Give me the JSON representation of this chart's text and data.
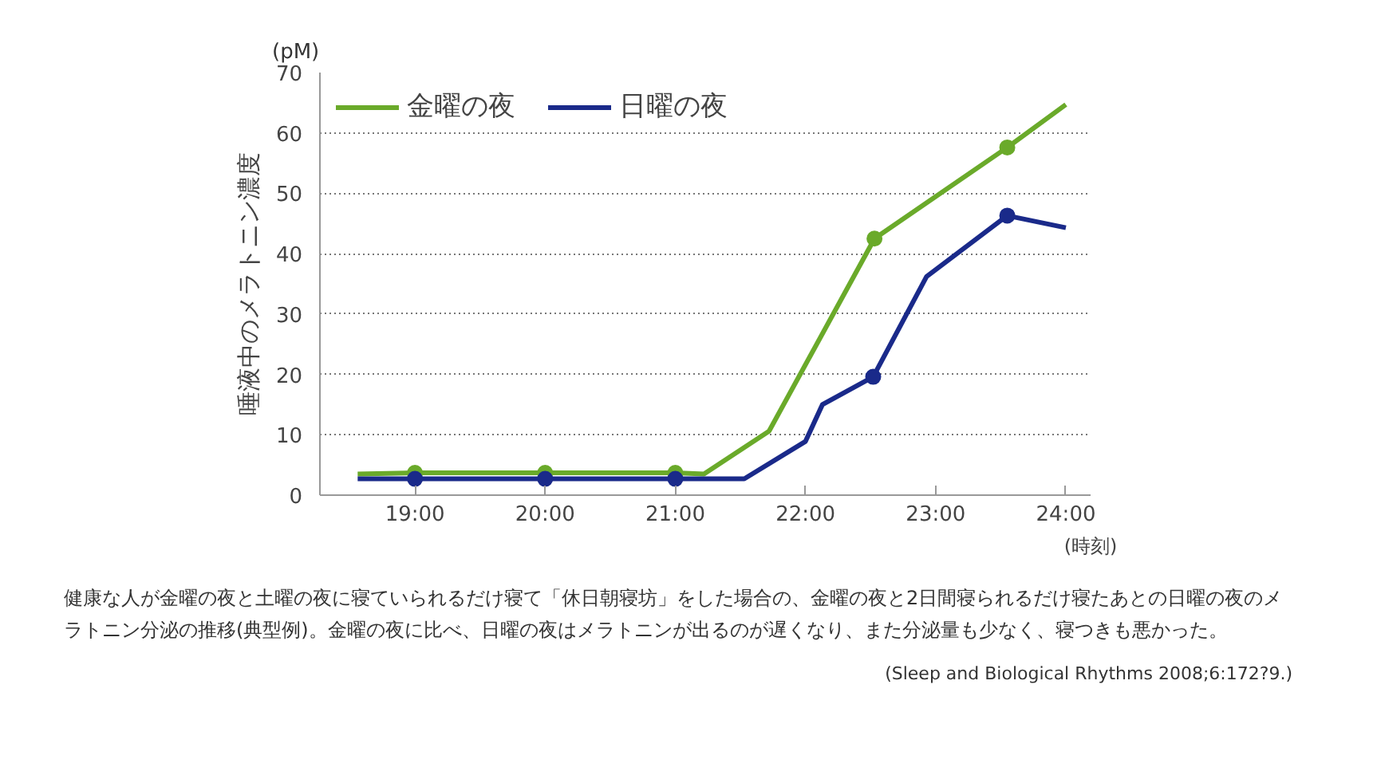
{
  "chart_data": {
    "type": "line",
    "ylabel": "唾液中のメラトニン濃度",
    "xlabel": "(時刻)",
    "annotations": [
      "(pM)",
      "健康な人が金曜の夜と土曜の夜に寝ていられるだけ寝て「休日朝寝坊」をした場合の、金曜の夜と2日間寝られるだけ寝たあとの日曜の夜のメラトニン分泌の推移(典型例)。金曜の夜に比べ、日曜の夜はメラトニンが出るのが遅くなり、また分泌量も少なく、寝つきも悪かった。",
      "(Sleep and Biological Rhythms 2008;6:172?9.)"
    ],
    "xlim": [
      18.27,
      24.19
    ],
    "ylim": [
      0,
      70
    ],
    "xticks": [
      {
        "value": 19,
        "label": "19:00"
      },
      {
        "value": 20,
        "label": "20:00"
      },
      {
        "value": 21,
        "label": "21:00"
      },
      {
        "value": 22,
        "label": "22:00"
      },
      {
        "value": 23,
        "label": "23:00"
      },
      {
        "value": 24,
        "label": "24:00"
      }
    ],
    "yticks": [
      0,
      10,
      20,
      30,
      40,
      50,
      60,
      70
    ],
    "grid": "y",
    "legend": "top left",
    "line_style": "solid",
    "series": [
      {
        "name": "金曜の夜",
        "color": "#6aaa2a",
        "x": [
          18.56,
          19,
          20,
          21,
          21.22,
          21.72,
          22.53,
          23.55,
          24
        ],
        "values": [
          3.5,
          3.7,
          3.7,
          3.7,
          3.5,
          10.6,
          42.5,
          57.6,
          64.7
        ]
      },
      {
        "name": "日曜の夜",
        "color": "#1a2a8a",
        "x": [
          18.56,
          19,
          20,
          21,
          21.53,
          22,
          22.13,
          22.52,
          22.93,
          23.55,
          24
        ],
        "values": [
          2.7,
          2.7,
          2.7,
          2.7,
          2.7,
          8.9,
          15,
          19.6,
          36.2,
          46.3,
          44.3
        ]
      },
      {
        "color": "#6aaa2a",
        "type": "scatter",
        "marker": "circle",
        "x": [
          19,
          20,
          21,
          22.53,
          23.55
        ],
        "values": [
          3.7,
          3.7,
          3.7,
          42.5,
          57.6
        ]
      },
      {
        "color": "#1a2a8a",
        "type": "scatter",
        "marker": "circle",
        "x": [
          19,
          20,
          21,
          22.52,
          23.55
        ],
        "values": [
          2.7,
          2.7,
          2.7,
          19.6,
          46.3
        ]
      }
    ]
  }
}
